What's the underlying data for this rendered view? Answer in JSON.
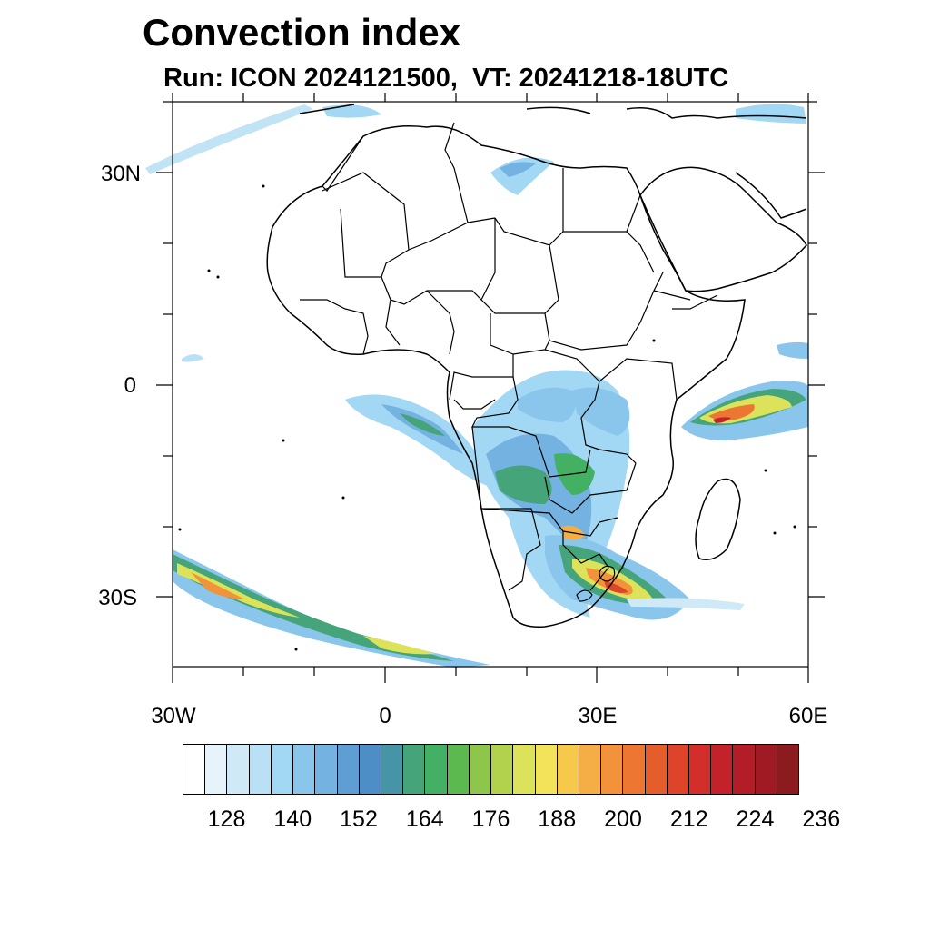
{
  "title": "Convection index",
  "subtitle": "Run: ICON 2024121500,  VT: 20241218-18UTC",
  "map": {
    "region": "Africa",
    "lon_range": [
      -30,
      60
    ],
    "lat_range": [
      -40,
      40
    ],
    "lat_ticks": [
      {
        "value": 30,
        "label": "30N"
      },
      {
        "value": 0,
        "label": "0"
      },
      {
        "value": -30,
        "label": "30S"
      }
    ],
    "lon_ticks": [
      {
        "value": -30,
        "label": "30W"
      },
      {
        "value": 0,
        "label": "0"
      },
      {
        "value": 30,
        "label": "30E"
      },
      {
        "value": 60,
        "label": "60E"
      }
    ]
  },
  "colorbar": {
    "colors": [
      "#ffffff",
      "#e6f3fb",
      "#cfe9f7",
      "#b9e0f5",
      "#a2d8f4",
      "#8ac6ec",
      "#74b2e2",
      "#5f9ed3",
      "#4d8ec6",
      "#4794a6",
      "#46a47b",
      "#43b064",
      "#5bb94f",
      "#8dc64b",
      "#b2d24e",
      "#dce35a",
      "#f2e35b",
      "#f6c84c",
      "#f5ae45",
      "#f2933b",
      "#ec7632",
      "#e65d2c",
      "#dd4429",
      "#d42e2b",
      "#c4222b",
      "#b31d28",
      "#a01a24",
      "#8c1b1f"
    ],
    "labels": [
      {
        "text": "128",
        "index": 2
      },
      {
        "text": "140",
        "index": 5
      },
      {
        "text": "152",
        "index": 8
      },
      {
        "text": "164",
        "index": 11
      },
      {
        "text": "176",
        "index": 14
      },
      {
        "text": "188",
        "index": 17
      },
      {
        "text": "200",
        "index": 20
      },
      {
        "text": "212",
        "index": 23
      },
      {
        "text": "224",
        "index": 26
      },
      {
        "text": "236",
        "index": 29
      }
    ]
  }
}
